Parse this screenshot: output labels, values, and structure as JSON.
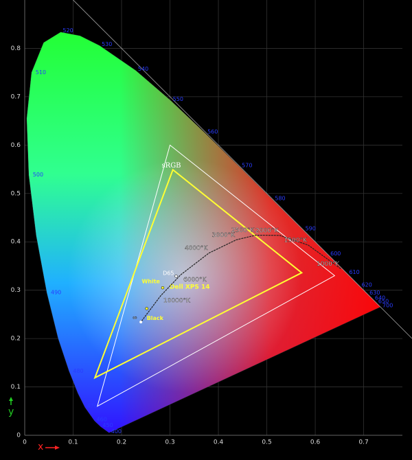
{
  "chart_data": {
    "type": "chromaticity",
    "xlabel": "x",
    "ylabel": "y",
    "xlim": [
      0,
      0.78
    ],
    "ylim": [
      0,
      0.9
    ],
    "xticks": [
      0,
      0.1,
      0.2,
      0.3,
      0.4,
      0.5,
      0.6,
      0.7
    ],
    "yticks": [
      0,
      0.1,
      0.2,
      0.3,
      0.4,
      0.5,
      0.6,
      0.7,
      0.8
    ],
    "grid": true,
    "spectral_locus": {
      "x": [
        0.1741,
        0.1566,
        0.144,
        0.1241,
        0.1096,
        0.0913,
        0.0687,
        0.0454,
        0.0235,
        0.0082,
        0.0039,
        0.0139,
        0.0389,
        0.0743,
        0.1142,
        0.1547,
        0.2296,
        0.3016,
        0.3731,
        0.4441,
        0.5125,
        0.5752,
        0.627,
        0.6658,
        0.6915,
        0.7079,
        0.719,
        0.726,
        0.7347
      ],
      "y": [
        0.005,
        0.0177,
        0.0297,
        0.0578,
        0.0868,
        0.1327,
        0.2007,
        0.295,
        0.4127,
        0.5384,
        0.6548,
        0.7502,
        0.812,
        0.8338,
        0.8262,
        0.8059,
        0.7543,
        0.6923,
        0.6245,
        0.5547,
        0.4866,
        0.4242,
        0.3725,
        0.334,
        0.3083,
        0.292,
        0.2809,
        0.274,
        0.2653
      ],
      "wavelengths": [
        400,
        450,
        460,
        470,
        null,
        480,
        null,
        490,
        null,
        500,
        null,
        510,
        null,
        520,
        null,
        530,
        540,
        550,
        560,
        570,
        580,
        590,
        600,
        610,
        620,
        630,
        640,
        650,
        700
      ]
    },
    "gamuts": [
      {
        "name": "sRGB",
        "color": "#ffffff",
        "x": [
          0.64,
          0.3,
          0.15
        ],
        "y": [
          0.33,
          0.6,
          0.06
        ]
      },
      {
        "name": "Dell XPS 14",
        "color": "#ffff33",
        "x": [
          0.572,
          0.306,
          0.145
        ],
        "y": [
          0.336,
          0.549,
          0.119
        ]
      }
    ],
    "planckian_locus": {
      "x": [
        0.6528,
        0.5857,
        0.5267,
        0.477,
        0.4369,
        0.3805,
        0.3221,
        0.2807,
        0.2399
      ],
      "y": [
        0.3444,
        0.3931,
        0.4133,
        0.4137,
        0.4041,
        0.3768,
        0.3318,
        0.2884,
        0.2342
      ],
      "labels": [
        "1000°K",
        "1500°K",
        "2000°K",
        "2500°K",
        "3000°K",
        "4000°K",
        "6000°K",
        "10000°K",
        "∞"
      ]
    },
    "points": [
      {
        "label": "D65",
        "x": 0.3127,
        "y": 0.329,
        "color": "#ffffff"
      },
      {
        "label": "White",
        "x": 0.285,
        "y": 0.305,
        "color": "#ffff33"
      },
      {
        "label": "Black",
        "x": 0.252,
        "y": 0.262,
        "color": "#ffff33"
      }
    ]
  }
}
